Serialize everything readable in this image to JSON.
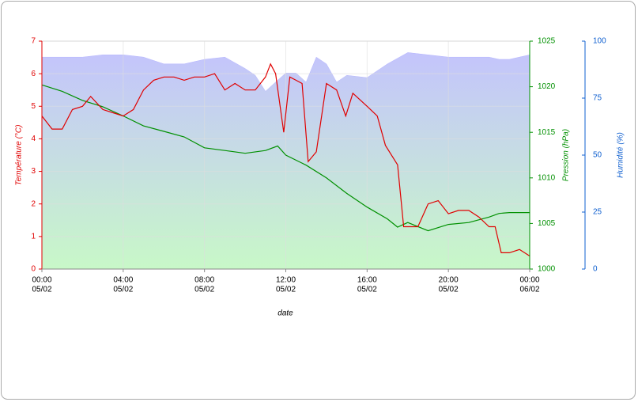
{
  "chart_data": {
    "type": "line",
    "xlabel": "date",
    "xlim": [
      0,
      24
    ],
    "xticks": [
      {
        "value": 0,
        "label": "00:00"
      },
      {
        "value": 4,
        "label": "04:00"
      },
      {
        "value": 8,
        "label": "08:00"
      },
      {
        "value": 12,
        "label": "12:00"
      },
      {
        "value": 16,
        "label": "16:00"
      },
      {
        "value": 20,
        "label": "20:00"
      },
      {
        "value": 24,
        "label": "00:00"
      }
    ],
    "xtick_dates": [
      "05/02",
      "05/02",
      "05/02",
      "05/02",
      "05/02",
      "05/02",
      "06/02"
    ],
    "ylabel": "Température (°C)",
    "ylim": [
      0,
      7
    ],
    "yticks": [
      0,
      1,
      2,
      3,
      4,
      5,
      6,
      7
    ],
    "ycolor": "#e00000",
    "y2label": "Pression (hPa)",
    "y2lim": [
      1000,
      1025
    ],
    "y2ticks": [
      1000,
      1005,
      1010,
      1015,
      1020,
      1025
    ],
    "y2color": "#009000",
    "y3label": "Humidité (%)",
    "y3lim": [
      0,
      100
    ],
    "y3ticks": [
      0,
      25,
      50,
      75,
      100
    ],
    "y3color": "#1060d0",
    "grid": true,
    "series": [
      {
        "axis": "y3",
        "style": "area",
        "color": "#b4b4ff",
        "x": [
          0,
          2,
          3,
          4,
          5,
          6,
          7,
          8,
          9,
          10,
          10.5,
          11,
          11.5,
          12,
          12.5,
          13,
          13.5,
          14,
          14.5,
          15,
          16,
          17,
          18,
          19,
          20,
          21,
          22,
          22.5,
          23,
          24
        ],
        "values": [
          93,
          93,
          94,
          94,
          93,
          90,
          90,
          92,
          93,
          88,
          85,
          78,
          82,
          86,
          86,
          82,
          93,
          90,
          82,
          85,
          84,
          90,
          95,
          94,
          93,
          93,
          93,
          92,
          92,
          94
        ]
      },
      {
        "axis": "y2",
        "style": "line",
        "color": "#009000",
        "x": [
          0,
          1,
          2,
          3,
          4,
          5,
          6,
          7,
          8,
          9,
          10,
          11,
          11.6,
          12,
          13,
          14,
          15,
          16,
          17,
          17.5,
          18,
          19,
          20,
          21,
          22,
          22.5,
          23,
          24
        ],
        "values": [
          1020.2,
          1019.5,
          1018.5,
          1017.8,
          1016.8,
          1015.7,
          1015.1,
          1014.5,
          1013.3,
          1013.0,
          1012.7,
          1013.0,
          1013.5,
          1012.5,
          1011.4,
          1010.0,
          1008.3,
          1006.8,
          1005.5,
          1004.6,
          1005.1,
          1004.2,
          1004.9,
          1005.1,
          1005.7,
          1006.1,
          1006.2,
          1006.2
        ]
      },
      {
        "axis": "y",
        "style": "line",
        "color": "#e00000",
        "x": [
          0,
          0.5,
          1,
          1.5,
          2,
          2.4,
          3,
          3.5,
          4,
          4.5,
          5,
          5.5,
          6,
          6.5,
          7,
          7.5,
          8,
          8.5,
          9,
          9.5,
          10,
          10.5,
          11,
          11.25,
          11.5,
          11.9,
          12.2,
          12.5,
          12.8,
          13.1,
          13.5,
          14,
          14.5,
          14.95,
          15.3,
          16,
          16.5,
          16.9,
          17.5,
          17.8,
          18.5,
          19,
          19.5,
          20,
          20.5,
          21,
          21.5,
          22,
          22.3,
          22.6,
          23,
          23.5,
          24
        ],
        "values": [
          4.7,
          4.3,
          4.3,
          4.9,
          5.0,
          5.3,
          4.9,
          4.8,
          4.7,
          4.9,
          5.5,
          5.8,
          5.9,
          5.9,
          5.8,
          5.9,
          5.9,
          6.0,
          5.5,
          5.7,
          5.5,
          5.5,
          5.9,
          6.3,
          6.0,
          4.2,
          5.9,
          5.8,
          5.7,
          3.3,
          3.6,
          5.7,
          5.5,
          4.7,
          5.4,
          5.0,
          4.7,
          3.8,
          3.2,
          1.3,
          1.3,
          2.0,
          2.1,
          1.7,
          1.8,
          1.8,
          1.6,
          1.3,
          1.3,
          0.5,
          0.5,
          0.6,
          0.4
        ]
      }
    ]
  }
}
